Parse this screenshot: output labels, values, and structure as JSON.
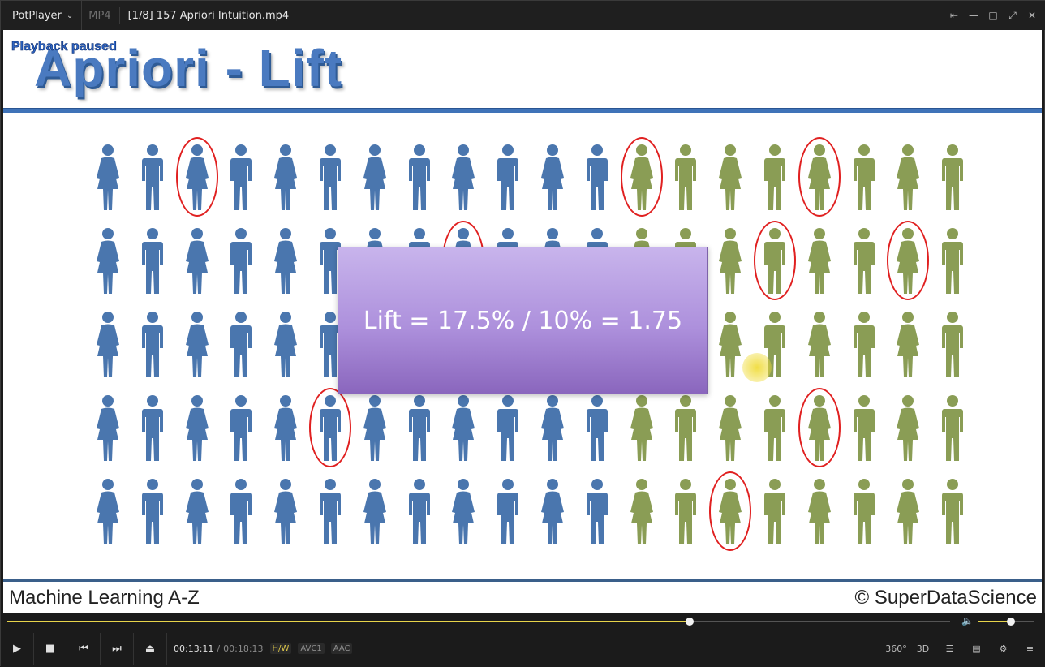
{
  "titlebar": {
    "app_name": "PotPlayer",
    "format": "MP4",
    "file_title": "[1/8] 157 Apriori Intuition.mp4"
  },
  "video": {
    "osd_status": "Playback paused",
    "slide_title": "Apriori - Lift",
    "overlay_text": "Lift = 17.5% / 10% = 1.75",
    "footer_left": "Machine Learning A-Z",
    "footer_right": "© SuperDataScience",
    "colors": {
      "blue": "#4a76ae",
      "green": "#8a9d55",
      "ring": "#e02020",
      "rule": "#3f73b8"
    }
  },
  "playback": {
    "current_time": "00:13:11",
    "total_time": "00:18:13",
    "progress": 0.724,
    "volume": 0.58,
    "badges": [
      "H/W",
      "AVC1",
      "AAC"
    ]
  },
  "controls": {
    "right_labels": [
      "360°",
      "3D"
    ]
  }
}
